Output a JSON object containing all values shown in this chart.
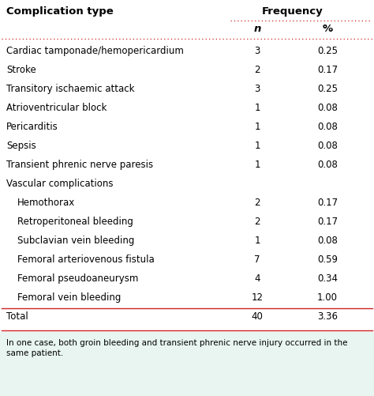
{
  "title_col1": "Complication type",
  "title_freq": "Frequency",
  "sub_n": "n",
  "sub_pct": "%",
  "rows": [
    {
      "label": "Cardiac tamponade/hemopericardium",
      "n": "3",
      "pct": "0.25",
      "indent": false,
      "bold": false
    },
    {
      "label": "Stroke",
      "n": "2",
      "pct": "0.17",
      "indent": false,
      "bold": false
    },
    {
      "label": "Transitory ischaemic attack",
      "n": "3",
      "pct": "0.25",
      "indent": false,
      "bold": false
    },
    {
      "label": "Atrioventricular block",
      "n": "1",
      "pct": "0.08",
      "indent": false,
      "bold": false
    },
    {
      "label": "Pericarditis",
      "n": "1",
      "pct": "0.08",
      "indent": false,
      "bold": false
    },
    {
      "label": "Sepsis",
      "n": "1",
      "pct": "0.08",
      "indent": false,
      "bold": false
    },
    {
      "label": "Transient phrenic nerve paresis",
      "n": "1",
      "pct": "0.08",
      "indent": false,
      "bold": false
    },
    {
      "label": "Vascular complications",
      "n": "",
      "pct": "",
      "indent": false,
      "bold": false
    },
    {
      "label": "Hemothorax",
      "n": "2",
      "pct": "0.17",
      "indent": true,
      "bold": false
    },
    {
      "label": "Retroperitoneal bleeding",
      "n": "2",
      "pct": "0.17",
      "indent": true,
      "bold": false
    },
    {
      "label": "Subclavian vein bleeding",
      "n": "1",
      "pct": "0.08",
      "indent": true,
      "bold": false
    },
    {
      "label": "Femoral arteriovenous fistula",
      "n": "7",
      "pct": "0.59",
      "indent": true,
      "bold": false
    },
    {
      "label": "Femoral pseudoaneurysm",
      "n": "4",
      "pct": "0.34",
      "indent": true,
      "bold": false
    },
    {
      "label": "Femoral vein bleeding",
      "n": "12",
      "pct": "1.00",
      "indent": true,
      "bold": false
    },
    {
      "label": "Total",
      "n": "40",
      "pct": "3.36",
      "indent": false,
      "bold": false
    }
  ],
  "footnote_line1": "In one case, both groin bleeding and transient phrenic nerve injury occurred in the",
  "footnote_line2": "same patient.",
  "bg_color": "#ffffff",
  "header_color": "#000000",
  "dotted_color": "#cc2222",
  "line_color": "#cc2222",
  "text_color": "#000000",
  "fig_w": 4.74,
  "fig_h": 5.02,
  "dpi": 100
}
